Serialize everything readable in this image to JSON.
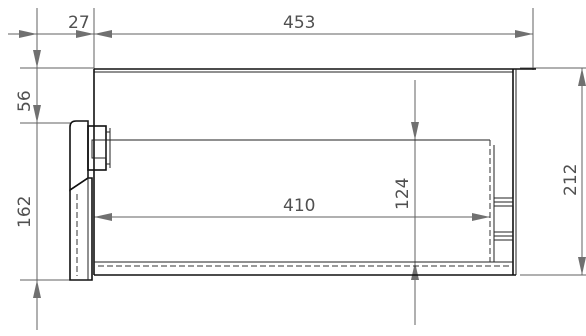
{
  "dimensions": {
    "top_small": "27",
    "top_overall": "453",
    "left_upper": "56",
    "left_lower": "162",
    "right_height": "212",
    "inner_width": "410",
    "inner_height": "124"
  },
  "colors": {
    "dimension_lines": "#606060",
    "part_outline": "#111111",
    "background": "#ffffff"
  }
}
